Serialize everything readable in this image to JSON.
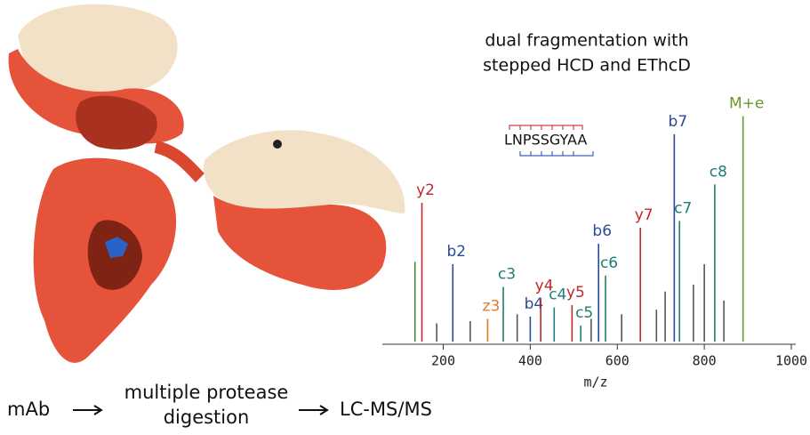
{
  "heading": [
    "dual fragmentation with",
    "stepped HCD and EThcD"
  ],
  "peptide": "LNPSSGYAA",
  "workflow": {
    "start": "mAb",
    "middle": [
      "multiple protease",
      "digestion"
    ],
    "end": "LC-MS/MS"
  },
  "chart_data": {
    "type": "stem",
    "x_label": "m/z",
    "xlim": [
      60,
      1000
    ],
    "xticks": [
      200,
      400,
      600,
      800,
      1000
    ],
    "ylim": [
      0,
      100
    ],
    "x": [
      135,
      151,
      185,
      222,
      262,
      302,
      338,
      370,
      400,
      424,
      455,
      496,
      516,
      540,
      557,
      573,
      610,
      653,
      690,
      710,
      731,
      743,
      775,
      800,
      824,
      845,
      889
    ],
    "values": [
      35,
      61,
      8,
      34,
      9,
      10,
      24,
      12,
      11,
      19,
      15,
      16,
      7,
      10,
      43,
      29,
      12,
      50,
      14,
      22,
      91,
      53,
      25,
      34,
      69,
      18,
      99
    ],
    "labels": [
      null,
      "y2",
      null,
      "b2",
      null,
      "z3",
      "c3",
      null,
      "b4",
      "y4",
      "c4",
      "y5",
      "c5",
      null,
      "b6",
      "c6",
      null,
      "y7",
      null,
      null,
      "b7",
      "c7",
      null,
      null,
      "c8",
      null,
      "M+e"
    ],
    "colors": [
      "#5a7a3a",
      "#c0282a",
      "#555",
      "#2b4a9a",
      "#555",
      "#e07b20",
      "#1f7d72",
      "#555",
      "#2b4a9a",
      "#c0282a",
      "#1f7d72",
      "#c0282a",
      "#1f7d72",
      "#555",
      "#2b4a9a",
      "#1f7d72",
      "#555",
      "#c0282a",
      "#555",
      "#555",
      "#2b4a9a",
      "#1f7d72",
      "#555",
      "#555",
      "#1f7d72",
      "#555",
      "#6a9a2a"
    ]
  }
}
